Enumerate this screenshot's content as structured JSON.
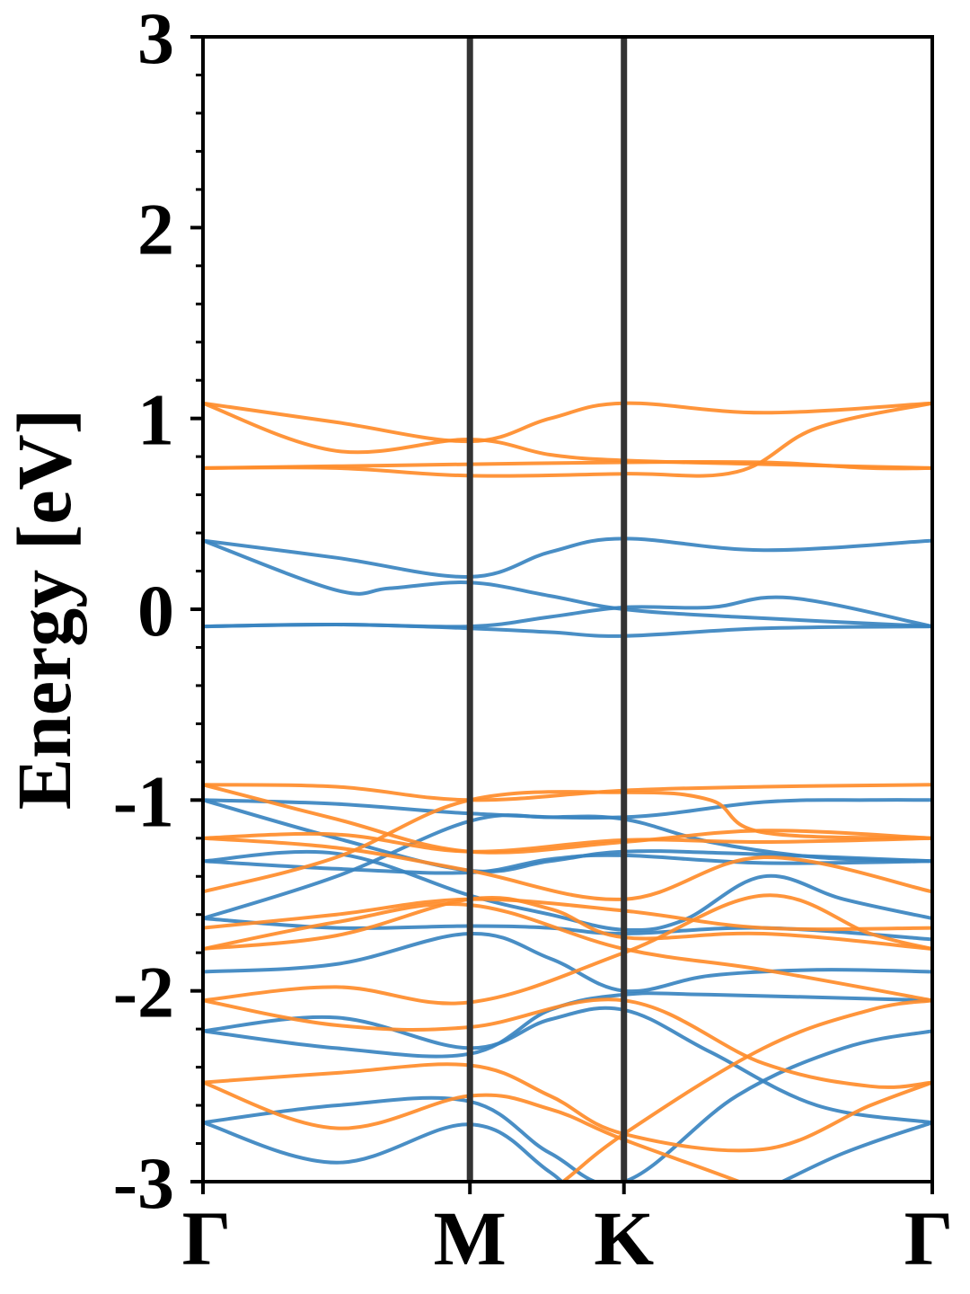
{
  "chart_data": {
    "type": "line",
    "title": "",
    "xlabel": "",
    "ylabel": "Energy [eV]",
    "ylim": [
      -3,
      3
    ],
    "yticks": [
      "-3",
      "-2",
      "-1",
      "0",
      "1",
      "2",
      "3"
    ],
    "ytick_values": [
      -3,
      -2,
      -1,
      0,
      1,
      2,
      3
    ],
    "xticks": [
      "Γ",
      "M",
      "K",
      "Γ"
    ],
    "xtick_positions": [
      0,
      1,
      1.577,
      2.732
    ],
    "xlim": [
      0,
      2.732
    ],
    "grid": false,
    "legend": "none",
    "colors": {
      "series_1": "#3a84c0",
      "series_2": "#ff8c2a",
      "symmetry_lines": "#333333",
      "axes": "#000000"
    },
    "series": [
      {
        "color": "#3a84c0",
        "bands": [
          [
            [
              0,
              0.36
            ],
            [
              0.5,
              0.1
            ],
            [
              0.7,
              0.11
            ],
            [
              1.0,
              0.14
            ],
            [
              1.3,
              0.07
            ],
            [
              1.577,
              0.0
            ],
            [
              2.0,
              -0.04
            ],
            [
              2.732,
              -0.09
            ]
          ],
          [
            [
              0,
              0.36
            ],
            [
              0.5,
              0.27
            ],
            [
              1.0,
              0.17
            ],
            [
              1.3,
              0.3
            ],
            [
              1.577,
              0.37
            ],
            [
              2.1,
              0.31
            ],
            [
              2.732,
              0.36
            ]
          ],
          [
            [
              0,
              -0.09
            ],
            [
              0.5,
              -0.08
            ],
            [
              1.0,
              -0.09
            ],
            [
              1.3,
              -0.04
            ],
            [
              1.577,
              0.01
            ],
            [
              1.9,
              0.01
            ],
            [
              2.2,
              0.06
            ],
            [
              2.732,
              -0.09
            ]
          ],
          [
            [
              0,
              -0.09
            ],
            [
              0.5,
              -0.08
            ],
            [
              1.0,
              -0.1
            ],
            [
              1.3,
              -0.12
            ],
            [
              1.577,
              -0.14
            ],
            [
              2.1,
              -0.1
            ],
            [
              2.732,
              -0.09
            ]
          ],
          [
            [
              0,
              -1.0
            ],
            [
              0.5,
              -1.02
            ],
            [
              1.0,
              -1.07
            ],
            [
              1.577,
              -1.09
            ],
            [
              2.1,
              -1.01
            ],
            [
              2.5,
              -1.0
            ],
            [
              2.732,
              -1.0
            ]
          ],
          [
            [
              0,
              -1.0
            ],
            [
              0.5,
              -1.2
            ],
            [
              1.0,
              -1.37
            ],
            [
              1.3,
              -1.32
            ],
            [
              1.577,
              -1.27
            ],
            [
              2.0,
              -1.28
            ],
            [
              2.732,
              -1.32
            ]
          ],
          [
            [
              0,
              -1.32
            ],
            [
              0.5,
              -1.36
            ],
            [
              1.0,
              -1.38
            ],
            [
              1.3,
              -1.31
            ],
            [
              1.577,
              -1.29
            ],
            [
              2.1,
              -1.33
            ],
            [
              2.732,
              -1.32
            ]
          ],
          [
            [
              0,
              -1.32
            ],
            [
              0.5,
              -1.28
            ],
            [
              1.0,
              -1.5
            ],
            [
              1.3,
              -1.6
            ],
            [
              1.577,
              -1.68
            ],
            [
              1.8,
              -1.63
            ],
            [
              2.1,
              -1.4
            ],
            [
              2.4,
              -1.52
            ],
            [
              2.732,
              -1.62
            ]
          ],
          [
            [
              0,
              -1.62
            ],
            [
              0.5,
              -1.4
            ],
            [
              1.0,
              -1.11
            ],
            [
              1.3,
              -1.09
            ],
            [
              1.577,
              -1.1
            ],
            [
              1.9,
              -1.22
            ],
            [
              2.3,
              -1.3
            ],
            [
              2.732,
              -1.32
            ]
          ],
          [
            [
              0,
              -1.9
            ],
            [
              0.5,
              -1.86
            ],
            [
              1.0,
              -1.7
            ],
            [
              1.3,
              -1.83
            ],
            [
              1.577,
              -2.0
            ],
            [
              1.9,
              -1.92
            ],
            [
              2.3,
              -1.89
            ],
            [
              2.732,
              -1.9
            ]
          ],
          [
            [
              0,
              -2.21
            ],
            [
              0.5,
              -2.14
            ],
            [
              1.0,
              -2.3
            ],
            [
              1.3,
              -2.15
            ],
            [
              1.577,
              -2.1
            ],
            [
              1.9,
              -2.32
            ],
            [
              2.3,
              -2.6
            ],
            [
              2.732,
              -2.69
            ]
          ],
          [
            [
              0,
              -2.21
            ],
            [
              0.5,
              -2.3
            ],
            [
              1.0,
              -2.33
            ],
            [
              1.3,
              -2.1
            ],
            [
              1.577,
              -2.02
            ],
            [
              1.9,
              -2.02
            ],
            [
              2.732,
              -2.05
            ]
          ],
          [
            [
              0,
              -1.62
            ],
            [
              0.5,
              -1.67
            ],
            [
              1.0,
              -1.66
            ],
            [
              1.3,
              -1.67
            ],
            [
              1.577,
              -1.7
            ],
            [
              2.1,
              -1.67
            ],
            [
              2.732,
              -1.73
            ]
          ],
          [
            [
              0,
              -2.69
            ],
            [
              0.5,
              -2.6
            ],
            [
              1.0,
              -2.58
            ],
            [
              1.3,
              -2.85
            ],
            [
              1.577,
              -3.0
            ],
            [
              2.0,
              -2.55
            ],
            [
              2.4,
              -2.3
            ],
            [
              2.732,
              -2.21
            ]
          ],
          [
            [
              0,
              -2.69
            ],
            [
              0.5,
              -2.9
            ],
            [
              1.0,
              -2.7
            ],
            [
              1.3,
              -2.95
            ],
            [
              1.577,
              -3.25
            ],
            [
              2.0,
              -3.1
            ],
            [
              2.4,
              -2.85
            ],
            [
              2.732,
              -2.69
            ]
          ]
        ]
      },
      {
        "color": "#ff8c2a",
        "bands": [
          [
            [
              0,
              1.08
            ],
            [
              0.5,
              0.83
            ],
            [
              1.0,
              0.89
            ],
            [
              1.3,
              0.81
            ],
            [
              1.577,
              0.78
            ],
            [
              2.1,
              0.76
            ],
            [
              2.732,
              0.74
            ]
          ],
          [
            [
              0,
              1.08
            ],
            [
              0.5,
              0.98
            ],
            [
              1.0,
              0.88
            ],
            [
              1.3,
              1.0
            ],
            [
              1.577,
              1.08
            ],
            [
              2.1,
              1.03
            ],
            [
              2.732,
              1.08
            ]
          ],
          [
            [
              0,
              0.74
            ],
            [
              0.5,
              0.75
            ],
            [
              1.0,
              0.76
            ],
            [
              1.577,
              0.77
            ],
            [
              2.1,
              0.77
            ],
            [
              2.5,
              0.74
            ],
            [
              2.732,
              0.74
            ]
          ],
          [
            [
              0,
              0.74
            ],
            [
              0.5,
              0.74
            ],
            [
              1.0,
              0.7
            ],
            [
              1.577,
              0.71
            ],
            [
              2.0,
              0.72
            ],
            [
              2.3,
              0.95
            ],
            [
              2.732,
              1.08
            ]
          ],
          [
            [
              0,
              -0.92
            ],
            [
              0.5,
              -0.93
            ],
            [
              1.0,
              -1.0
            ],
            [
              1.577,
              -0.95
            ],
            [
              2.1,
              -0.93
            ],
            [
              2.732,
              -0.92
            ]
          ],
          [
            [
              0,
              -0.92
            ],
            [
              0.5,
              -1.1
            ],
            [
              1.0,
              -1.27
            ],
            [
              1.577,
              -1.22
            ],
            [
              2.1,
              -1.16
            ],
            [
              2.732,
              -1.2
            ]
          ],
          [
            [
              0,
              -1.2
            ],
            [
              0.5,
              -1.18
            ],
            [
              1.0,
              -1.27
            ],
            [
              1.577,
              -1.21
            ],
            [
              2.1,
              -1.22
            ],
            [
              2.732,
              -1.2
            ]
          ],
          [
            [
              0,
              -1.2
            ],
            [
              0.5,
              -1.25
            ],
            [
              1.0,
              -1.37
            ],
            [
              1.577,
              -1.52
            ],
            [
              2.1,
              -1.3
            ],
            [
              2.732,
              -1.48
            ]
          ],
          [
            [
              0,
              -1.48
            ],
            [
              0.5,
              -1.3
            ],
            [
              1.0,
              -1.0
            ],
            [
              1.577,
              -0.96
            ],
            [
              1.9,
              -1.0
            ],
            [
              2.1,
              -1.17
            ],
            [
              2.732,
              -1.2
            ]
          ],
          [
            [
              0,
              -1.67
            ],
            [
              0.5,
              -1.6
            ],
            [
              1.0,
              -1.52
            ],
            [
              1.577,
              -1.58
            ],
            [
              2.1,
              -1.67
            ],
            [
              2.732,
              -1.67
            ]
          ],
          [
            [
              0,
              -1.78
            ],
            [
              0.5,
              -1.64
            ],
            [
              1.0,
              -1.55
            ],
            [
              1.577,
              -1.78
            ],
            [
              2.1,
              -1.89
            ],
            [
              2.732,
              -2.05
            ]
          ],
          [
            [
              0,
              -1.78
            ],
            [
              0.5,
              -1.71
            ],
            [
              1.0,
              -1.52
            ],
            [
              1.3,
              -1.57
            ],
            [
              1.577,
              -1.72
            ],
            [
              2.1,
              -1.7
            ],
            [
              2.732,
              -1.78
            ]
          ],
          [
            [
              0,
              -2.05
            ],
            [
              0.5,
              -1.98
            ],
            [
              1.0,
              -2.06
            ],
            [
              1.577,
              -1.8
            ],
            [
              2.1,
              -1.5
            ],
            [
              2.5,
              -1.7
            ],
            [
              2.732,
              -1.78
            ]
          ],
          [
            [
              0,
              -2.05
            ],
            [
              0.5,
              -2.18
            ],
            [
              1.0,
              -2.19
            ],
            [
              1.577,
              -2.05
            ],
            [
              2.1,
              -2.38
            ],
            [
              2.5,
              -2.5
            ],
            [
              2.732,
              -2.48
            ]
          ],
          [
            [
              0,
              -2.48
            ],
            [
              0.5,
              -2.43
            ],
            [
              1.0,
              -2.39
            ],
            [
              1.3,
              -2.55
            ],
            [
              1.577,
              -2.75
            ],
            [
              2.1,
              -2.83
            ],
            [
              2.5,
              -2.6
            ],
            [
              2.732,
              -2.48
            ]
          ],
          [
            [
              0,
              -2.48
            ],
            [
              0.5,
              -2.72
            ],
            [
              1.0,
              -2.55
            ],
            [
              1.3,
              -2.62
            ],
            [
              1.577,
              -2.78
            ],
            [
              2.1,
              -3.05
            ],
            [
              2.5,
              -3.3
            ],
            [
              2.732,
              -3.4
            ]
          ],
          [
            [
              1.0,
              -3.3
            ],
            [
              1.3,
              -3.05
            ],
            [
              1.577,
              -2.75
            ],
            [
              2.1,
              -2.3
            ],
            [
              2.5,
              -2.1
            ],
            [
              2.732,
              -2.05
            ]
          ]
        ]
      }
    ]
  }
}
